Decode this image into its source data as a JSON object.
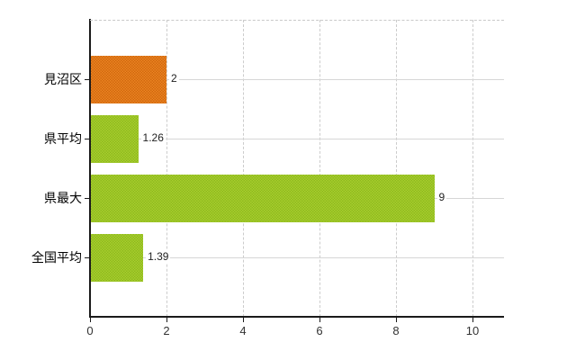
{
  "chart": {
    "background_color": "#ffffff",
    "axis_color": "#1a1a1a",
    "vertical_gridline_color": "#cccccc",
    "row_line_color": "#d6d6d6",
    "category_label_color": "#000000",
    "tick_label_color": "#333333",
    "value_label_color": "#222222"
  },
  "chart_data": {
    "type": "bar",
    "orientation": "horizontal",
    "title": "",
    "xlabel": "",
    "ylabel": "",
    "legend": null,
    "categories": [
      "見沼区",
      "県平均",
      "県最大",
      "全国平均"
    ],
    "values": [
      2,
      1.26,
      9,
      1.39
    ],
    "value_labels": [
      "2",
      "1.26",
      "9",
      "1.39"
    ],
    "bar_colors": [
      {
        "base": "#ec8522",
        "dot": "#d0670e"
      },
      {
        "base": "#a9ce2e",
        "dot": "#8db91d"
      },
      {
        "base": "#a9ce2e",
        "dot": "#8db91d"
      },
      {
        "base": "#a9ce2e",
        "dot": "#8db91d"
      }
    ],
    "x_axis": {
      "min": 0,
      "max": 10.8,
      "ticks": [
        0,
        2,
        4,
        6,
        8,
        10
      ],
      "tick_labels": [
        "0",
        "2",
        "4",
        "6",
        "8",
        "10"
      ]
    },
    "grid": {
      "vertical_gridlines": "dashed",
      "horizontal_row_lines": "solid",
      "top_border": "dashed"
    }
  }
}
